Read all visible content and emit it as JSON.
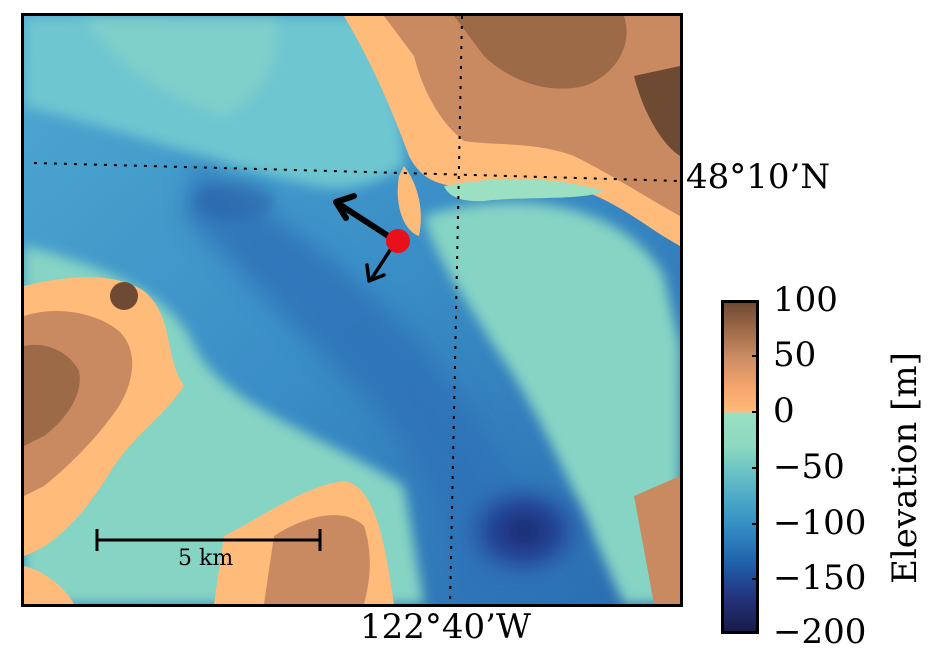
{
  "map": {
    "lat_label": "48°10’N",
    "lon_label": "122°40’W",
    "scale_bar_label": "5 km"
  },
  "colorbar": {
    "label": "Elevation [m]",
    "ticks": [
      "100",
      "50",
      "0",
      "−50",
      "−100",
      "−150",
      "−200"
    ],
    "range": [
      -200,
      100
    ],
    "colors": {
      "deep": "#181c4a",
      "mid_water": "#2f86c0",
      "shallow": "#9be0c2",
      "low_land": "#ffbb7a",
      "high_land": "#6e4a33"
    }
  },
  "markers": {
    "station_color": "#e8101a"
  }
}
